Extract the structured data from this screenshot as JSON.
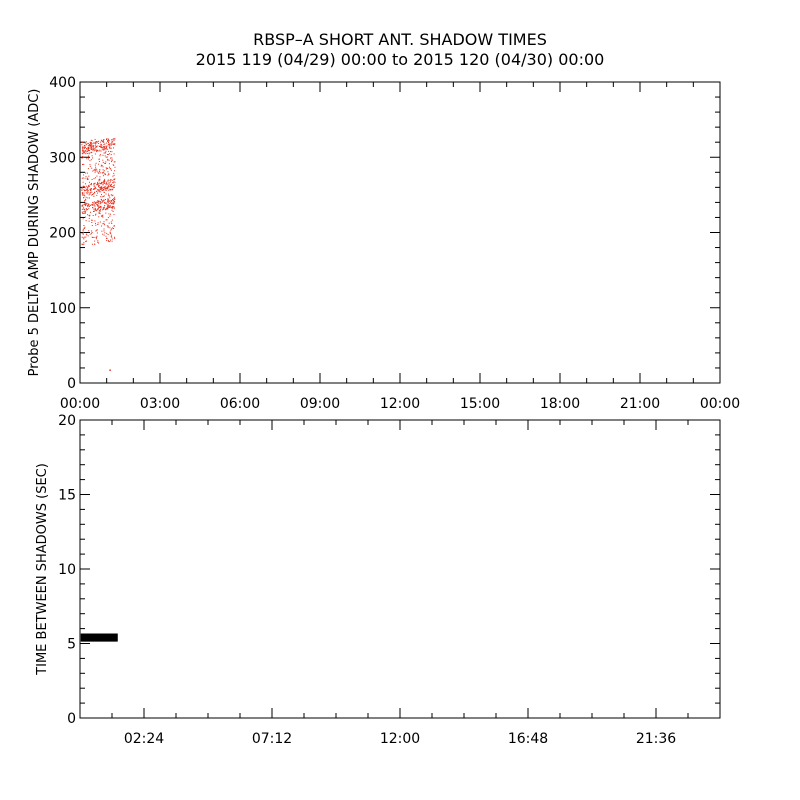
{
  "title": "RBSP–A SHORT ANT. SHADOW TIMES",
  "subtitle": "2015 119 (04/29) 00:00 to 2015 120 (04/30) 00:00",
  "colors": {
    "points": "#e8311f",
    "bars": "#000000",
    "axes": "#000000",
    "background": "#ffffff"
  },
  "chart_data": [
    {
      "type": "scatter",
      "ylabel": "Probe 5 DELTA AMP DURING SHADOW (ADC)",
      "xlabel": "",
      "xlim": [
        0,
        24
      ],
      "ylim": [
        0,
        400
      ],
      "x_tick_labels": [
        "00:00",
        "03:00",
        "06:00",
        "09:00",
        "12:00",
        "15:00",
        "18:00",
        "21:00",
        "00:00"
      ],
      "y_tick_labels": [
        "0",
        "100",
        "200",
        "300",
        "400"
      ],
      "series": [
        {
          "description_points": "dense cloud of red points from 00:00 to about 01:15 with values between ~185 and ~325 ADC; denser bands near ~235, ~260 and ~315; one isolated point near 01:05 at ~18 ADC",
          "x_range": [
            0.05,
            1.3
          ],
          "y_range": [
            185,
            325
          ],
          "bands": [
            235,
            260,
            315
          ],
          "outliers": [
            [
              1.1,
              18
            ]
          ]
        }
      ]
    },
    {
      "type": "scatter",
      "ylabel": "TIME BETWEEN SHADOWS (SEC)",
      "xlabel": "",
      "xlim": [
        0,
        24
      ],
      "ylim": [
        0,
        20
      ],
      "x_tick_labels": [
        "02:24",
        "07:12",
        "12:00",
        "16:48",
        "21:36"
      ],
      "y_tick_labels": [
        "0",
        "5",
        "10",
        "15",
        "20"
      ],
      "series": [
        {
          "x_range": [
            0.05,
            1.4
          ],
          "y_value": 5.4
        }
      ]
    }
  ]
}
